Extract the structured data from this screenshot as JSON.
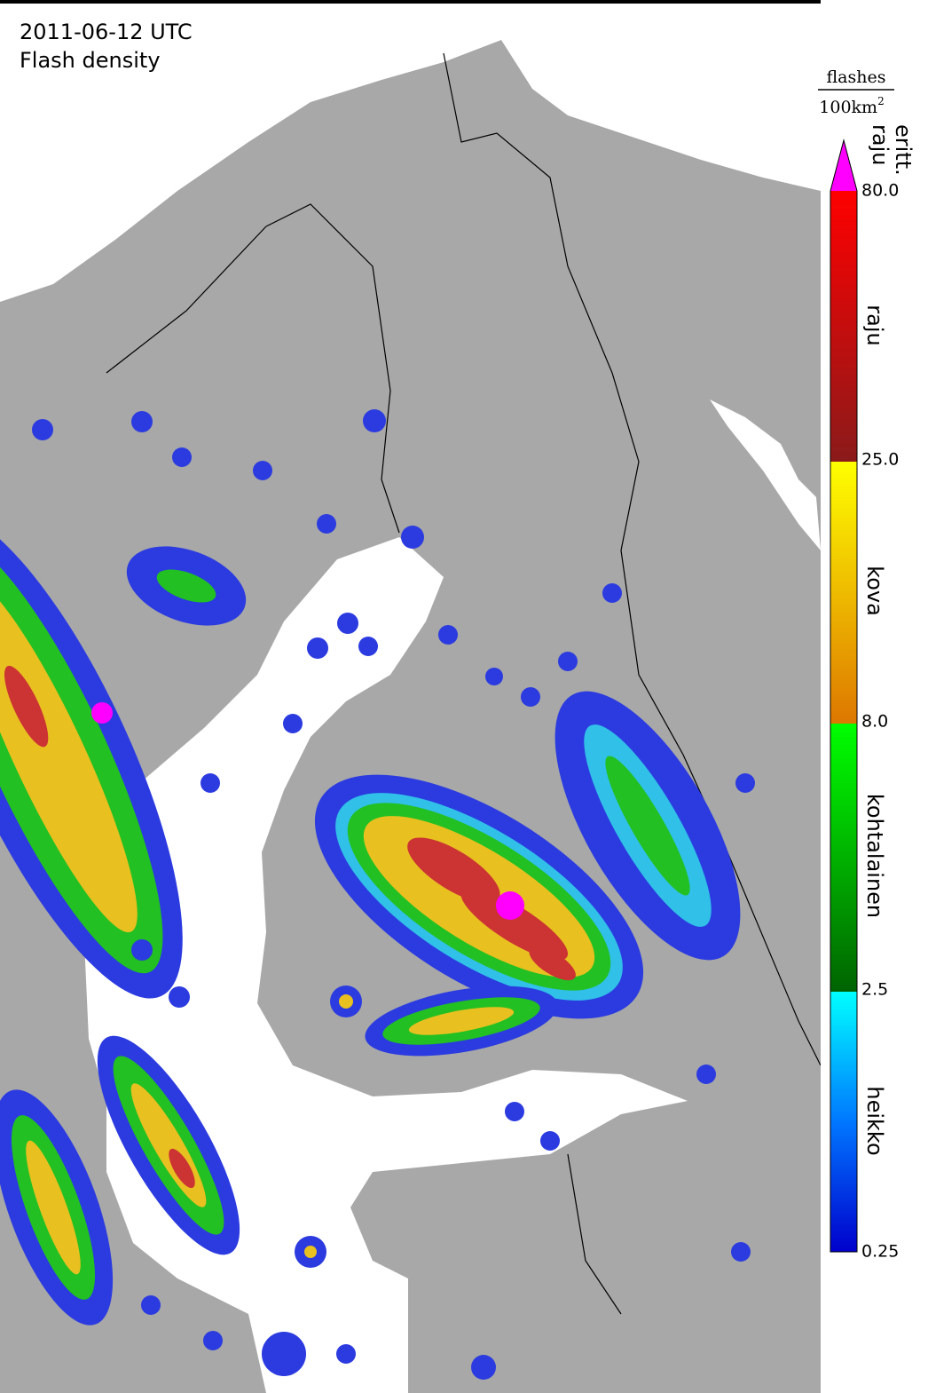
{
  "header": {
    "date": "2011-06-12 UTC",
    "title": "Flash density"
  },
  "colorbar": {
    "unit_numerator": "flashes",
    "unit_denominator": "100km",
    "unit_exponent": "2",
    "extreme_class": [
      "eritt.",
      "raju"
    ],
    "levels": [
      "80.0",
      "25.0",
      "8.0",
      "2.5",
      "0.25"
    ],
    "classes": [
      "raju",
      "kova",
      "kohtalainen",
      "heikko"
    ]
  }
}
